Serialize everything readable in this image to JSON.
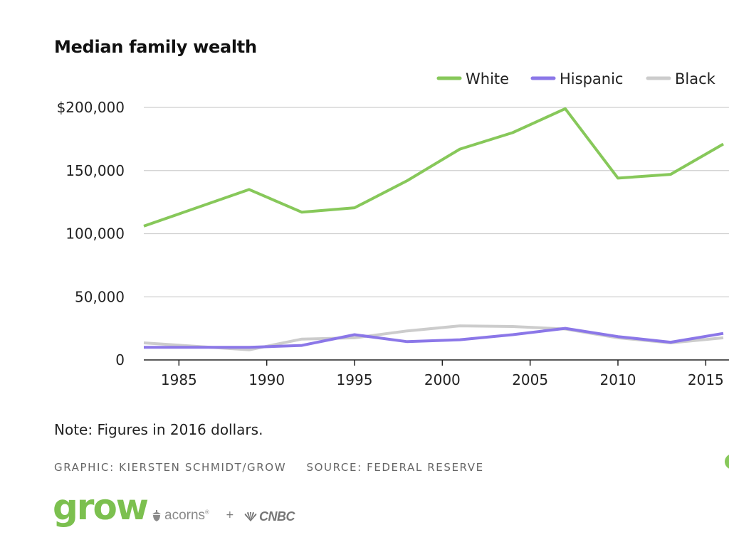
{
  "title": "Median family wealth",
  "note": "Note: Figures in 2016 dollars.",
  "credit_graphic": "GRAPHIC: KIERSTEN SCHMIDT/GROW",
  "credit_source": "SOURCE: FEDERAL RESERVE",
  "logos": {
    "grow": "grow",
    "acorns": "acorns",
    "plus": "+",
    "cnbc": "CNBC"
  },
  "colors": {
    "white": "#87c85a",
    "hispanic": "#8b77e8",
    "black": "#cccccc",
    "grid": "#cfcfcf"
  },
  "chart_data": {
    "type": "line",
    "title": "Median family wealth",
    "xlabel": "",
    "ylabel": "",
    "xlim": [
      1983,
      2016
    ],
    "ylim": [
      0,
      200000
    ],
    "yticks": [
      0,
      50000,
      100000,
      150000,
      200000
    ],
    "ytick_labels": [
      "0",
      "50,000",
      "100,000",
      "150,000",
      "$200,000"
    ],
    "xticks": [
      1985,
      1990,
      1995,
      2000,
      2005,
      2010,
      2015
    ],
    "xtick_labels": [
      "1985",
      "1990",
      "1995",
      "2000",
      "2005",
      "2010",
      "2015"
    ],
    "grid": true,
    "legend_position": "top-right",
    "x": [
      1983,
      1989,
      1992,
      1995,
      1998,
      2001,
      2004,
      2007,
      2010,
      2013,
      2016
    ],
    "series": [
      {
        "name": "White",
        "color": "#87c85a",
        "values": [
          106000,
          135000,
          117000,
          120500,
          142000,
          167000,
          180000,
          199000,
          144000,
          147000,
          171000
        ]
      },
      {
        "name": "Hispanic",
        "color": "#8b77e8",
        "values": [
          10000,
          10000,
          11500,
          20000,
          14500,
          16000,
          20000,
          25000,
          18500,
          14000,
          21000
        ]
      },
      {
        "name": "Black",
        "color": "#cccccc",
        "values": [
          13500,
          8000,
          16500,
          17500,
          23000,
          27000,
          26500,
          24500,
          17500,
          13500,
          17500
        ]
      }
    ]
  }
}
